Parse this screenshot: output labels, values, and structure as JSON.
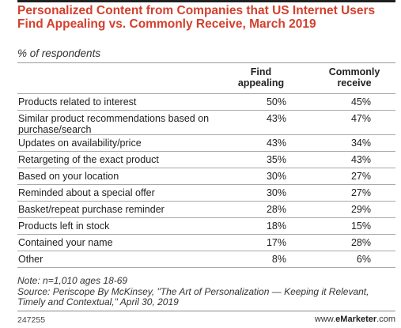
{
  "title": "Personalized Content from Companies that US Internet Users Find Appealing vs. Commonly Receive, March 2019",
  "subtitle": "% of respondents",
  "chart_data": {
    "type": "table",
    "columns": [
      "",
      "Find appealing",
      "Commonly receive"
    ],
    "column_headers": {
      "find": [
        "Find",
        "appealing"
      ],
      "receive": [
        "Commonly",
        "receive"
      ]
    },
    "rows": [
      {
        "label": "Products related to interest",
        "find": "50%",
        "receive": "45%"
      },
      {
        "label": "Similar product recommendations based on purchase/search",
        "find": "43%",
        "receive": "47%"
      },
      {
        "label": "Updates on availability/price",
        "find": "43%",
        "receive": "34%"
      },
      {
        "label": "Retargeting of the exact product",
        "find": "35%",
        "receive": "43%"
      },
      {
        "label": "Based on your location",
        "find": "30%",
        "receive": "27%"
      },
      {
        "label": "Reminded about a special offer",
        "find": "30%",
        "receive": "27%"
      },
      {
        "label": "Basket/repeat purchase reminder",
        "find": "28%",
        "receive": "29%"
      },
      {
        "label": "Products left in stock",
        "find": "18%",
        "receive": "15%"
      },
      {
        "label": "Contained your name",
        "find": "17%",
        "receive": "28%"
      },
      {
        "label": "Other",
        "find": "8%",
        "receive": "6%"
      }
    ]
  },
  "note": "Note: n=1,010 ages 18-69",
  "source": "Source: Periscope By McKinsey, \"The Art of Personalization — Keeping it Relevant, Timely and Contextual,\" April 30, 2019",
  "footer": {
    "chart_id": "247255",
    "brand_prefix": "www.",
    "brand_name": "eMarketer",
    "brand_suffix": ".com"
  },
  "colors": {
    "title": "#d2402d",
    "rule": "#a9a9a9"
  }
}
